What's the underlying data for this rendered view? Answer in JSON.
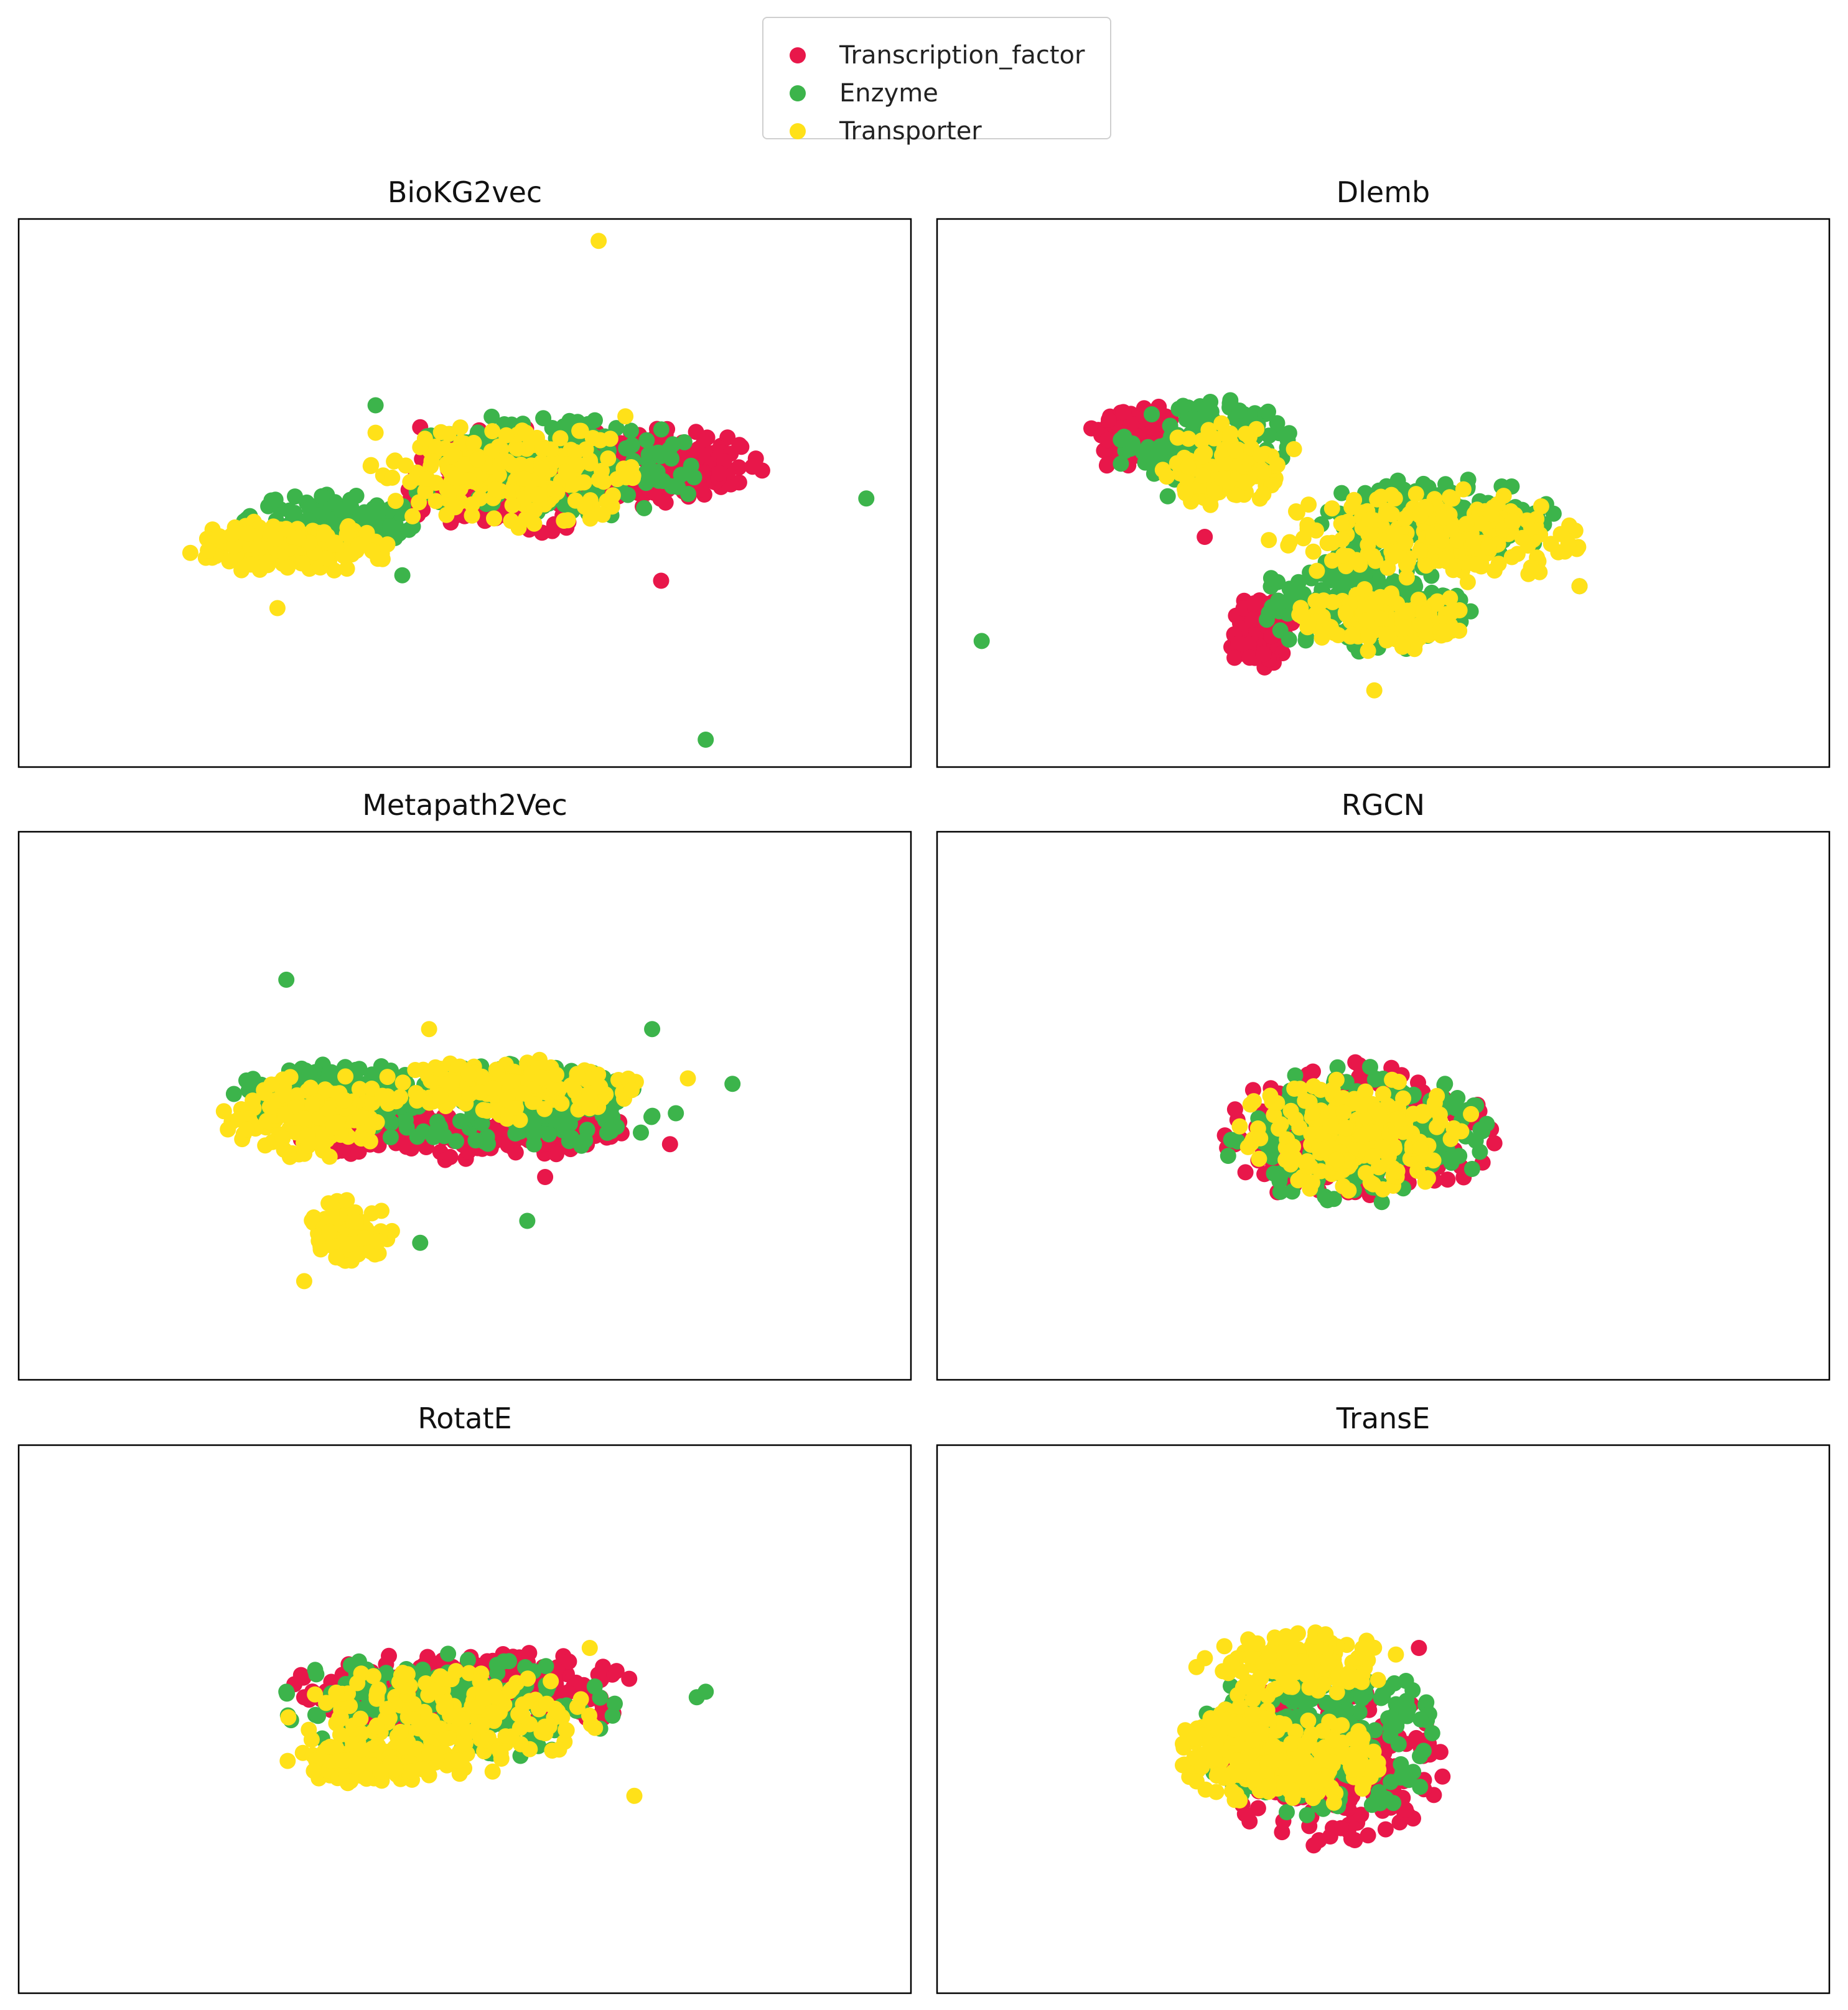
{
  "legend": {
    "items": [
      {
        "label": "Transcription_factor",
        "color": "#e8174a"
      },
      {
        "label": "Enzyme",
        "color": "#3cb44b"
      },
      {
        "label": "Transporter",
        "color": "#ffe119"
      }
    ]
  },
  "chart_data": [
    {
      "type": "scatter",
      "title": "BioKG2vec",
      "axes": "hidden ticks",
      "series": [
        {
          "name": "Transcription_factor",
          "color": "#e8174a",
          "clusters": [
            {
              "cx": 0.72,
              "cy": 0.55,
              "rx": 0.12,
              "ry": 0.08
            },
            {
              "cx": 0.55,
              "cy": 0.52,
              "rx": 0.14,
              "ry": 0.1
            }
          ],
          "outliers": [
            [
              0.72,
              0.34
            ],
            [
              0.45,
              0.62
            ],
            [
              0.47,
              0.58
            ]
          ]
        },
        {
          "name": "Enzyme",
          "color": "#3cb44b",
          "clusters": [
            {
              "cx": 0.6,
              "cy": 0.55,
              "rx": 0.18,
              "ry": 0.1
            },
            {
              "cx": 0.35,
              "cy": 0.45,
              "rx": 0.1,
              "ry": 0.05
            }
          ],
          "outliers": [
            [
              0.95,
              0.49
            ],
            [
              0.77,
              0.05
            ],
            [
              0.4,
              0.66
            ],
            [
              0.43,
              0.35
            ]
          ]
        },
        {
          "name": "Transporter",
          "color": "#ffe119",
          "clusters": [
            {
              "cx": 0.55,
              "cy": 0.53,
              "rx": 0.16,
              "ry": 0.1
            },
            {
              "cx": 0.3,
              "cy": 0.4,
              "rx": 0.12,
              "ry": 0.05
            }
          ],
          "outliers": [
            [
              0.65,
              0.96
            ],
            [
              0.4,
              0.61
            ],
            [
              0.68,
              0.64
            ],
            [
              0.29,
              0.29
            ]
          ]
        }
      ]
    },
    {
      "type": "scatter",
      "title": "Dlemb",
      "axes": "hidden ticks",
      "series": [
        {
          "name": "Transcription_factor",
          "color": "#e8174a",
          "clusters": [
            {
              "cx": 0.22,
              "cy": 0.6,
              "rx": 0.05,
              "ry": 0.07
            },
            {
              "cx": 0.36,
              "cy": 0.25,
              "rx": 0.04,
              "ry": 0.07
            }
          ],
          "outliers": [
            [
              0.3,
              0.42
            ]
          ]
        },
        {
          "name": "Enzyme",
          "color": "#3cb44b",
          "clusters": [
            {
              "cx": 0.3,
              "cy": 0.58,
              "rx": 0.1,
              "ry": 0.1
            },
            {
              "cx": 0.48,
              "cy": 0.3,
              "rx": 0.12,
              "ry": 0.1
            },
            {
              "cx": 0.55,
              "cy": 0.45,
              "rx": 0.15,
              "ry": 0.08
            }
          ],
          "outliers": [
            [
              0.05,
              0.23
            ],
            [
              0.72,
              0.33
            ]
          ]
        },
        {
          "name": "Transporter",
          "color": "#ffe119",
          "clusters": [
            {
              "cx": 0.55,
              "cy": 0.42,
              "rx": 0.18,
              "ry": 0.09
            },
            {
              "cx": 0.5,
              "cy": 0.27,
              "rx": 0.1,
              "ry": 0.06
            },
            {
              "cx": 0.32,
              "cy": 0.55,
              "rx": 0.07,
              "ry": 0.08
            }
          ],
          "outliers": [
            [
              0.4,
              0.58
            ],
            [
              0.49,
              0.14
            ],
            [
              0.72,
              0.33
            ]
          ]
        }
      ]
    },
    {
      "type": "scatter",
      "title": "Metapath2Vec",
      "axes": "hidden ticks",
      "series": [
        {
          "name": "Transcription_factor",
          "color": "#e8174a",
          "clusters": [
            {
              "cx": 0.5,
              "cy": 0.45,
              "rx": 0.2,
              "ry": 0.05
            }
          ],
          "outliers": [
            [
              0.73,
              0.43
            ],
            [
              0.59,
              0.37
            ]
          ]
        },
        {
          "name": "Enzyme",
          "color": "#3cb44b",
          "clusters": [
            {
              "cx": 0.55,
              "cy": 0.5,
              "rx": 0.2,
              "ry": 0.08
            },
            {
              "cx": 0.35,
              "cy": 0.52,
              "rx": 0.12,
              "ry": 0.06
            }
          ],
          "outliers": [
            [
              0.3,
              0.73
            ],
            [
              0.71,
              0.64
            ],
            [
              0.8,
              0.54
            ],
            [
              0.57,
              0.29
            ],
            [
              0.45,
              0.25
            ]
          ]
        },
        {
          "name": "Transporter",
          "color": "#ffe119",
          "clusters": [
            {
              "cx": 0.33,
              "cy": 0.48,
              "rx": 0.1,
              "ry": 0.08
            },
            {
              "cx": 0.55,
              "cy": 0.53,
              "rx": 0.15,
              "ry": 0.06
            },
            {
              "cx": 0.37,
              "cy": 0.27,
              "rx": 0.05,
              "ry": 0.06
            }
          ],
          "outliers": [
            [
              0.46,
              0.64
            ],
            [
              0.75,
              0.55
            ],
            [
              0.23,
              0.49
            ],
            [
              0.32,
              0.18
            ]
          ]
        }
      ]
    },
    {
      "type": "scatter",
      "title": "RGCN",
      "axes": "hidden ticks",
      "series": [
        {
          "name": "Transcription_factor",
          "color": "#e8174a",
          "clusters": [
            {
              "cx": 0.47,
              "cy": 0.45,
              "rx": 0.16,
              "ry": 0.13
            }
          ],
          "outliers": []
        },
        {
          "name": "Enzyme",
          "color": "#3cb44b",
          "clusters": [
            {
              "cx": 0.47,
              "cy": 0.45,
              "rx": 0.155,
              "ry": 0.13
            }
          ],
          "outliers": []
        },
        {
          "name": "Transporter",
          "color": "#ffe119",
          "clusters": [
            {
              "cx": 0.47,
              "cy": 0.45,
              "rx": 0.14,
              "ry": 0.11
            }
          ],
          "outliers": []
        }
      ]
    },
    {
      "type": "scatter",
      "title": "RotatE",
      "axes": "hidden ticks",
      "series": [
        {
          "name": "Transcription_factor",
          "color": "#e8174a",
          "clusters": [
            {
              "cx": 0.5,
              "cy": 0.55,
              "rx": 0.2,
              "ry": 0.08
            }
          ],
          "outliers": [
            [
              0.32,
              0.54
            ]
          ]
        },
        {
          "name": "Enzyme",
          "color": "#3cb44b",
          "clusters": [
            {
              "cx": 0.47,
              "cy": 0.52,
              "rx": 0.2,
              "ry": 0.1
            }
          ],
          "outliers": [
            [
              0.3,
              0.55
            ],
            [
              0.76,
              0.54
            ],
            [
              0.77,
              0.55
            ]
          ]
        },
        {
          "name": "Transporter",
          "color": "#ffe119",
          "clusters": [
            {
              "cx": 0.48,
              "cy": 0.5,
              "rx": 0.18,
              "ry": 0.1
            },
            {
              "cx": 0.4,
              "cy": 0.42,
              "rx": 0.1,
              "ry": 0.04
            }
          ],
          "outliers": [
            [
              0.69,
              0.36
            ],
            [
              0.64,
              0.63
            ]
          ]
        }
      ]
    },
    {
      "type": "scatter",
      "title": "TransE",
      "axes": "hidden ticks",
      "series": [
        {
          "name": "Transcription_factor",
          "color": "#e8174a",
          "clusters": [
            {
              "cx": 0.44,
              "cy": 0.42,
              "rx": 0.13,
              "ry": 0.16
            }
          ],
          "outliers": [
            [
              0.54,
              0.63
            ]
          ]
        },
        {
          "name": "Enzyme",
          "color": "#3cb44b",
          "clusters": [
            {
              "cx": 0.43,
              "cy": 0.47,
              "rx": 0.14,
              "ry": 0.16
            }
          ],
          "outliers": []
        },
        {
          "name": "Transporter",
          "color": "#ffe119",
          "clusters": [
            {
              "cx": 0.4,
              "cy": 0.6,
              "rx": 0.12,
              "ry": 0.06
            },
            {
              "cx": 0.33,
              "cy": 0.45,
              "rx": 0.06,
              "ry": 0.1
            },
            {
              "cx": 0.42,
              "cy": 0.42,
              "rx": 0.08,
              "ry": 0.08
            }
          ],
          "outliers": []
        }
      ]
    }
  ]
}
